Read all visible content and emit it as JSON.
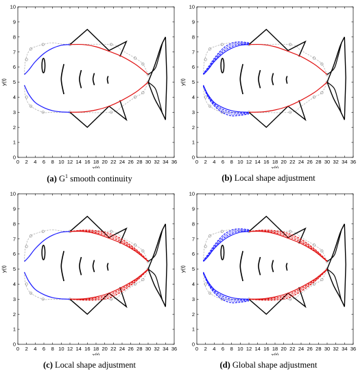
{
  "chart_data": [
    {
      "type": "line",
      "panel_letter": "(a)",
      "caption_part1": "G",
      "caption_sup": "1",
      "caption_part2": " smooth continuity",
      "xlabel": "x(t)",
      "ylabel": "y(t)",
      "xlim": [
        0,
        36
      ],
      "ylim": [
        0,
        10
      ],
      "xticks": [
        "0",
        "2",
        "4",
        "6",
        "8",
        "10",
        "12",
        "14",
        "16",
        "18",
        "20",
        "22",
        "24",
        "26",
        "28",
        "30",
        "32",
        "34",
        "36"
      ],
      "yticks": [
        "0",
        "1",
        "2",
        "3",
        "4",
        "5",
        "6",
        "7",
        "8",
        "9",
        "10"
      ],
      "grid": false,
      "blue_variants": 1,
      "red_variants": 1
    },
    {
      "type": "line",
      "panel_letter": "(b)",
      "caption_part1": "Local shape adjustment",
      "caption_sup": "",
      "caption_part2": "",
      "xlabel": "x(t)",
      "ylabel": "y(t)",
      "xlim": [
        0,
        36
      ],
      "ylim": [
        0,
        10
      ],
      "xticks": [
        "0",
        "2",
        "4",
        "6",
        "8",
        "10",
        "12",
        "14",
        "16",
        "18",
        "20",
        "22",
        "24",
        "26",
        "28",
        "30",
        "32",
        "34",
        "36"
      ],
      "yticks": [
        "0",
        "1",
        "2",
        "3",
        "4",
        "5",
        "6",
        "7",
        "8",
        "9",
        "10"
      ],
      "grid": false,
      "blue_variants": 4,
      "red_variants": 1
    },
    {
      "type": "line",
      "panel_letter": "(c)",
      "caption_part1": "Local shape adjustment",
      "caption_sup": "",
      "caption_part2": "",
      "xlabel": "x(t)",
      "ylabel": "y(t)",
      "xlim": [
        0,
        36
      ],
      "ylim": [
        0,
        10
      ],
      "xticks": [
        "0",
        "2",
        "4",
        "6",
        "8",
        "10",
        "12",
        "14",
        "16",
        "18",
        "20",
        "22",
        "24",
        "26",
        "28",
        "30",
        "32",
        "34",
        "36"
      ],
      "yticks": [
        "0",
        "1",
        "2",
        "3",
        "4",
        "5",
        "6",
        "7",
        "8",
        "9",
        "10"
      ],
      "grid": false,
      "blue_variants": 1,
      "red_variants": 4
    },
    {
      "type": "line",
      "panel_letter": "(d)",
      "caption_part1": "Global shape adjustment",
      "caption_sup": "",
      "caption_part2": "",
      "xlabel": "x(t)",
      "ylabel": "y(t)",
      "xlim": [
        0,
        36
      ],
      "ylim": [
        0,
        10
      ],
      "xticks": [
        "0",
        "2",
        "4",
        "6",
        "8",
        "10",
        "12",
        "14",
        "16",
        "18",
        "20",
        "22",
        "24",
        "26",
        "28",
        "30",
        "32",
        "34",
        "36"
      ],
      "yticks": [
        "0",
        "1",
        "2",
        "3",
        "4",
        "5",
        "6",
        "7",
        "8",
        "9",
        "10"
      ],
      "grid": false,
      "blue_variants": 4,
      "red_variants": 4
    }
  ],
  "shape": {
    "blue_upper": [
      [
        12,
        7.5
      ],
      [
        10,
        7.45
      ],
      [
        8,
        7.25
      ],
      [
        6,
        6.9
      ],
      [
        4,
        6.35
      ],
      [
        2.5,
        5.8
      ],
      [
        1.5,
        5.5
      ]
    ],
    "blue_lower": [
      [
        1.5,
        4.8
      ],
      [
        2.5,
        4.2
      ],
      [
        4,
        3.65
      ],
      [
        6,
        3.3
      ],
      [
        8,
        3.1
      ],
      [
        10,
        3.02
      ],
      [
        12,
        3.0
      ]
    ],
    "red_upper": [
      [
        12,
        7.5
      ],
      [
        15,
        7.5
      ],
      [
        18,
        7.35
      ],
      [
        21,
        7.05
      ],
      [
        24,
        6.7
      ],
      [
        27,
        6.2
      ],
      [
        29,
        5.75
      ],
      [
        30,
        5.5
      ]
    ],
    "red_lower": [
      [
        12,
        3.0
      ],
      [
        15,
        3.02
      ],
      [
        18,
        3.15
      ],
      [
        21,
        3.4
      ],
      [
        24,
        3.8
      ],
      [
        27,
        4.3
      ],
      [
        29,
        4.75
      ],
      [
        30,
        5.0
      ]
    ],
    "gray_upper": [
      [
        1.5,
        5.5
      ],
      [
        1.8,
        6.5
      ],
      [
        3,
        7.2
      ],
      [
        5.8,
        7.5
      ],
      [
        8,
        7.6
      ],
      [
        12,
        7.5
      ],
      [
        21.5,
        7.5
      ],
      [
        24,
        7.1
      ],
      [
        27,
        6.6
      ],
      [
        28.8,
        6.2
      ],
      [
        30,
        5.5
      ]
    ],
    "gray_lower": [
      [
        1.5,
        4.8
      ],
      [
        1.8,
        4
      ],
      [
        3,
        3.4
      ],
      [
        5.8,
        3.0
      ],
      [
        8,
        3.0
      ],
      [
        12,
        3.0
      ],
      [
        21.5,
        3.0
      ],
      [
        24,
        3.4
      ],
      [
        27,
        4.0
      ],
      [
        28.8,
        4.3
      ],
      [
        30,
        5.0
      ]
    ],
    "ctrl_points": [
      [
        2,
        6.5
      ],
      [
        3,
        7.2
      ],
      [
        5.8,
        7.5
      ],
      [
        21.5,
        7.5
      ],
      [
        27,
        6.6
      ],
      [
        28.8,
        6.2
      ],
      [
        2,
        4
      ],
      [
        3,
        3.4
      ],
      [
        5.8,
        3.0
      ],
      [
        21.5,
        3.0
      ],
      [
        27,
        4.0
      ],
      [
        28.8,
        4.3
      ],
      [
        12,
        7.5
      ],
      [
        12,
        3.0
      ],
      [
        30,
        5.5
      ],
      [
        30,
        5.0
      ]
    ],
    "top_fin": [
      [
        12,
        7.5
      ],
      [
        16,
        8.5
      ],
      [
        21,
        7.1
      ],
      [
        25,
        7.7
      ],
      [
        23.5,
        6.7
      ]
    ],
    "bottom_fin": [
      [
        12,
        3.0
      ],
      [
        16,
        2.0
      ],
      [
        21,
        3.4
      ],
      [
        25,
        2.5
      ],
      [
        23.5,
        3.8
      ]
    ],
    "tail_outer": [
      [
        30,
        5.0
      ],
      [
        31.5,
        6.1
      ],
      [
        33,
        7.4
      ],
      [
        34,
        8.0
      ],
      [
        34,
        6
      ],
      [
        34,
        4
      ],
      [
        34,
        2.5
      ],
      [
        33,
        3.1
      ],
      [
        31.5,
        3.9
      ],
      [
        30,
        5.0
      ]
    ],
    "tail_inner": [
      [
        30,
        5.5
      ],
      [
        31.6,
        5.9
      ],
      [
        32.4,
        6.6
      ],
      [
        33.3,
        7.6
      ]
    ],
    "tail_inner2": [
      [
        30,
        5.0
      ],
      [
        31.6,
        4.6
      ],
      [
        32.4,
        3.9
      ],
      [
        33.3,
        2.9
      ]
    ],
    "gills": [
      [
        [
          10.6,
          6.2
        ],
        [
          10.0,
          5.2
        ],
        [
          10.6,
          4.2
        ]
      ],
      [
        [
          14.6,
          5.8
        ],
        [
          14.2,
          5.2
        ],
        [
          14.6,
          4.6
        ]
      ],
      [
        [
          17.6,
          5.6
        ],
        [
          17.3,
          5.2
        ],
        [
          17.6,
          4.8
        ]
      ],
      [
        [
          20.8,
          5.4
        ],
        [
          20.6,
          5.2
        ],
        [
          20.8,
          4.9
        ]
      ]
    ],
    "eye": {
      "cx": 5.9,
      "cy": 6.1,
      "rx": 0.35,
      "ry": 0.3
    }
  }
}
